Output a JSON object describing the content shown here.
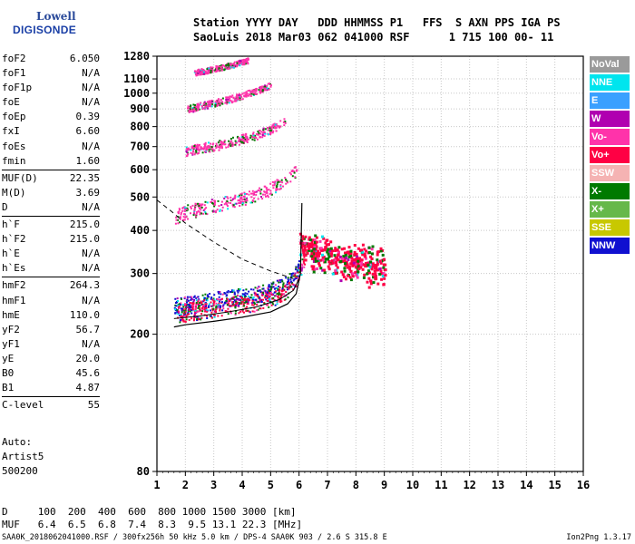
{
  "logo": {
    "line1": "Lowell",
    "line2": "DIGISONDE"
  },
  "header": {
    "line1": "Station YYYY DAY   DDD HHMMSS P1   FFS  S AXN PPS IGA PS",
    "line2": "SaoLuis 2018 Mar03 062 041000 RSF      1 715 100 00- 11"
  },
  "params": [
    [
      {
        "name": "foF2",
        "value": "6.050"
      },
      {
        "name": "foF1",
        "value": "N/A"
      },
      {
        "name": "foF1p",
        "value": "N/A"
      },
      {
        "name": "foE",
        "value": "N/A"
      },
      {
        "name": "foEp",
        "value": "0.39"
      },
      {
        "name": "fxI",
        "value": "6.60"
      },
      {
        "name": "foEs",
        "value": "N/A"
      },
      {
        "name": "fmin",
        "value": "1.60"
      }
    ],
    [
      {
        "name": "MUF(D)",
        "value": "22.35"
      },
      {
        "name": "M(D)",
        "value": "3.69"
      },
      {
        "name": "D",
        "value": "N/A"
      }
    ],
    [
      {
        "name": "h`F",
        "value": "215.0"
      },
      {
        "name": "h`F2",
        "value": "215.0"
      },
      {
        "name": "h`E",
        "value": "N/A"
      },
      {
        "name": "h`Es",
        "value": "N/A"
      }
    ],
    [
      {
        "name": "hmF2",
        "value": "264.3"
      },
      {
        "name": "hmF1",
        "value": "N/A"
      },
      {
        "name": "hmE",
        "value": "110.0"
      },
      {
        "name": "yF2",
        "value": "56.7"
      },
      {
        "name": "yF1",
        "value": "N/A"
      },
      {
        "name": "yE",
        "value": "20.0"
      },
      {
        "name": "B0",
        "value": "45.6"
      },
      {
        "name": "B1",
        "value": "4.87"
      }
    ],
    [
      {
        "name": "C-level",
        "value": "55"
      }
    ]
  ],
  "extra": [
    "Auto:",
    "Artist5",
    "500200"
  ],
  "legend": [
    {
      "label": "NoVal",
      "color": "#9a9a9a"
    },
    {
      "label": "NNE",
      "color": "#00e5ee"
    },
    {
      "label": "E",
      "color": "#3aa0ff"
    },
    {
      "label": "W",
      "color": "#b000b0"
    },
    {
      "label": "Vo-",
      "color": "#ff33aa"
    },
    {
      "label": "Vo+",
      "color": "#ff0044"
    },
    {
      "label": "SSW",
      "color": "#f5b3b3"
    },
    {
      "label": "X-",
      "color": "#007a00"
    },
    {
      "label": "X+",
      "color": "#66b84a"
    },
    {
      "label": "SSE",
      "color": "#c8c800"
    },
    {
      "label": "NNW",
      "color": "#1010d0"
    }
  ],
  "footer": {
    "line1": "D     100  200  400  600  800 1000 1500 3000 [km]",
    "line2": "MUF   6.4  6.5  6.8  7.4  8.3  9.5 13.1 22.3 [MHz]",
    "line3": "SAA0K_2018062041000.RSF / 300fx256h 50 kHz 5.0 km / DPS-4 SAA0K 903 / 2.6 S 315.8 E",
    "version": "Ion2Png 1.3.17"
  },
  "chart_data": {
    "type": "scatter",
    "title": "",
    "xlabel": "",
    "ylabel": "",
    "xlim": [
      1,
      16
    ],
    "ylim": [
      80,
      1280
    ],
    "yscale": "log",
    "xticks": [
      1,
      2,
      3,
      4,
      5,
      6,
      7,
      8,
      9,
      10,
      11,
      12,
      13,
      14,
      15,
      16
    ],
    "yticks": [
      80,
      200,
      300,
      400,
      500,
      600,
      700,
      800,
      900,
      1000,
      1100,
      1280
    ],
    "grid": true,
    "traces": [
      {
        "name": "F-trace 1st hop",
        "color": "#1010d0",
        "points": [
          [
            1.6,
            240
          ],
          [
            2.0,
            245
          ],
          [
            2.5,
            248
          ],
          [
            3.0,
            252
          ],
          [
            3.5,
            255
          ],
          [
            4.0,
            258
          ],
          [
            4.5,
            262
          ],
          [
            5.0,
            268
          ],
          [
            5.5,
            280
          ],
          [
            5.8,
            295
          ],
          [
            6.0,
            320
          ]
        ]
      },
      {
        "name": "F-trace 1st hop X",
        "color": "#ff0044",
        "points": [
          [
            1.7,
            230
          ],
          [
            2.2,
            235
          ],
          [
            3.0,
            240
          ],
          [
            4.0,
            245
          ],
          [
            5.0,
            255
          ],
          [
            5.6,
            270
          ],
          [
            6.0,
            300
          ],
          [
            6.2,
            340
          ]
        ]
      },
      {
        "name": "F-trace 2nd hop",
        "color": "#ff33aa",
        "points": [
          [
            1.6,
            440
          ],
          [
            2.0,
            455
          ],
          [
            2.5,
            465
          ],
          [
            3.0,
            475
          ],
          [
            3.5,
            485
          ],
          [
            4.0,
            495
          ],
          [
            4.5,
            510
          ],
          [
            5.0,
            530
          ],
          [
            5.5,
            560
          ],
          [
            5.9,
            600
          ]
        ]
      },
      {
        "name": "F-trace 3rd hop",
        "color": "#ff33aa",
        "points": [
          [
            2.0,
            680
          ],
          [
            2.5,
            695
          ],
          [
            3.0,
            705
          ],
          [
            3.5,
            720
          ],
          [
            4.0,
            740
          ],
          [
            4.5,
            760
          ],
          [
            5.0,
            790
          ],
          [
            5.5,
            830
          ]
        ]
      },
      {
        "name": "F-trace 4th hop",
        "color": "#ff33aa",
        "points": [
          [
            2.0,
            900
          ],
          [
            2.5,
            920
          ],
          [
            3.0,
            940
          ],
          [
            3.5,
            960
          ],
          [
            4.0,
            990
          ],
          [
            4.5,
            1020
          ],
          [
            5.0,
            1060
          ]
        ]
      },
      {
        "name": "F-trace 5th hop",
        "color": "#ff33aa",
        "points": [
          [
            2.3,
            1150
          ],
          [
            2.8,
            1170
          ],
          [
            3.2,
            1190
          ],
          [
            3.6,
            1210
          ],
          [
            4.2,
            1250
          ]
        ]
      },
      {
        "name": "Spread F",
        "color": "#ff0044",
        "points": [
          [
            6.0,
            360
          ],
          [
            6.5,
            340
          ],
          [
            7.0,
            330
          ],
          [
            7.5,
            320
          ],
          [
            8.0,
            315
          ],
          [
            8.5,
            310
          ],
          [
            9.0,
            305
          ]
        ]
      }
    ],
    "profile_curve": [
      [
        1.6,
        210
      ],
      [
        2.0,
        213
      ],
      [
        3.0,
        218
      ],
      [
        4.0,
        224
      ],
      [
        5.0,
        232
      ],
      [
        5.6,
        245
      ],
      [
        5.9,
        262
      ],
      [
        6.05,
        300
      ],
      [
        6.1,
        480
      ]
    ],
    "profile_curve2": [
      [
        1.6,
        222
      ],
      [
        2.5,
        226
      ],
      [
        3.5,
        232
      ],
      [
        4.5,
        240
      ],
      [
        5.3,
        252
      ],
      [
        5.8,
        268
      ],
      [
        6.0,
        290
      ]
    ],
    "dashed_curve": [
      [
        1.0,
        490
      ],
      [
        1.5,
        455
      ],
      [
        2.0,
        420
      ],
      [
        3.0,
        370
      ],
      [
        4.0,
        330
      ],
      [
        5.0,
        305
      ],
      [
        5.8,
        290
      ]
    ],
    "colors": {
      "plot_bg": "#ffffff",
      "axis": "#000000",
      "grid": "#c8c8c8"
    }
  }
}
